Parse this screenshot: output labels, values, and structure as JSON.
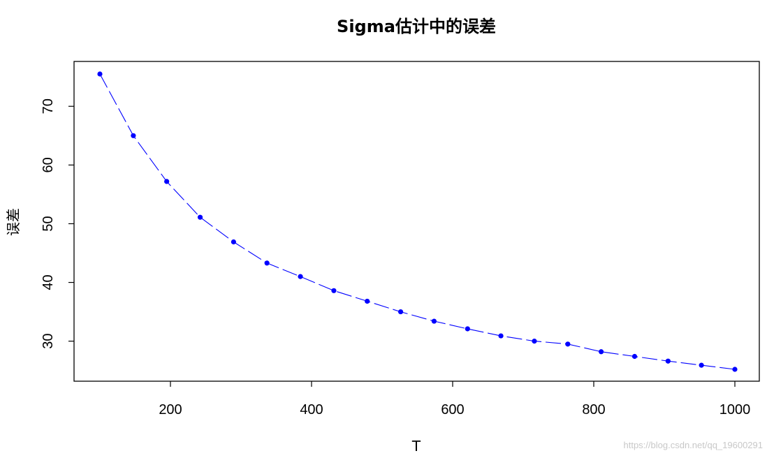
{
  "chart_data": {
    "type": "line",
    "title": "Sigma估计中的误差",
    "xlabel": "T",
    "ylabel": "误差",
    "xlim": [
      100,
      1000
    ],
    "ylim": [
      25.2,
      75.5
    ],
    "x_ticks": [
      200,
      400,
      600,
      800,
      1000
    ],
    "y_ticks": [
      30,
      40,
      50,
      60,
      70
    ],
    "grid": false,
    "legend": "none",
    "series": [
      {
        "color": "#0000ff",
        "line_style": "dashed",
        "marker": "filled-circle",
        "x": [
          100,
          147.4,
          194.7,
          242.1,
          289.5,
          336.8,
          384.2,
          431.6,
          478.9,
          526.3,
          573.7,
          621.1,
          668.4,
          715.8,
          763.2,
          810.5,
          857.9,
          905.3,
          952.6,
          1000
        ],
        "y": [
          75.5,
          65.0,
          57.2,
          51.1,
          46.9,
          43.3,
          41.0,
          38.6,
          36.8,
          35.0,
          33.4,
          32.1,
          30.9,
          30.0,
          29.5,
          28.2,
          27.4,
          26.6,
          25.9,
          25.2
        ]
      }
    ]
  },
  "watermark": "https://blog.csdn.net/qq_19600291"
}
